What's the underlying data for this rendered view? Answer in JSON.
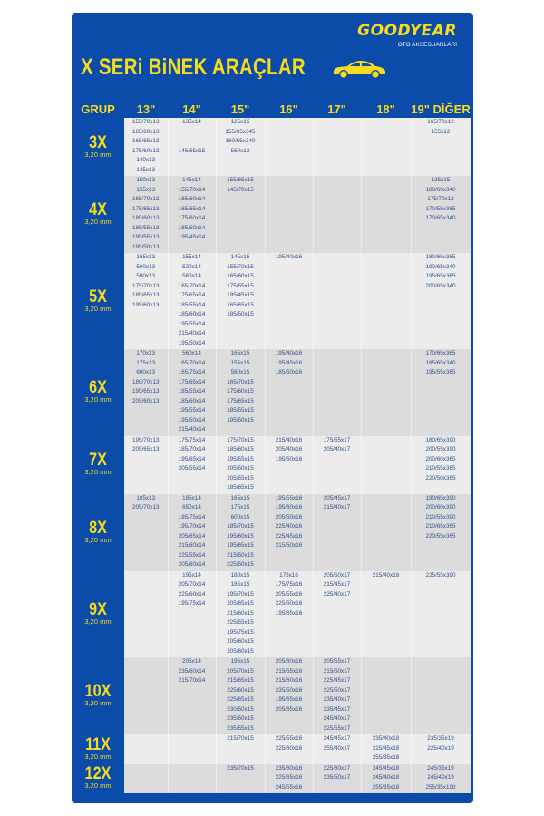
{
  "brand": {
    "logo": "GOODYEAR",
    "subtitle": "OTO AKSESUARLARI"
  },
  "title": "X SERi BiNEK ARAÇLAR",
  "colors": {
    "panel": "#0b4ba9",
    "accent": "#f7dc1b",
    "text": "#2c4f8c"
  },
  "headers": [
    "GRUP",
    "13\"",
    "14\"",
    "15\"",
    "16\"",
    "17\"",
    "18\"",
    "19\" DİĞER"
  ],
  "groups": [
    {
      "name": "3X",
      "thickness": "3,20 mm",
      "cells": [
        [
          "155/70x13",
          "165/60x13",
          "165/65x13",
          "175/60x13",
          "140x13",
          "145x13"
        ],
        [
          "135x14",
          "",
          "",
          "145/65x15"
        ],
        [
          "125x15",
          "155/65x345",
          "160/65x340",
          "560x12"
        ],
        [],
        [],
        [],
        [
          "165/70x12",
          "155x12"
        ]
      ]
    },
    {
      "name": "4X",
      "thickness": "3,20 mm",
      "cells": [
        [
          "150x13",
          "155x13",
          "165/70x13",
          "175/65x13",
          "185/60x13",
          "185/55x13",
          "195/55x13",
          "195/50x13"
        ],
        [
          "145x14",
          "155/70x14",
          "165/60x14",
          "165/65x14",
          "175/60x14",
          "185/50x14",
          "195/45x14"
        ],
        [
          "155/65x15",
          "145/70x15"
        ],
        [],
        [],
        [],
        [
          "135x15",
          "180/60x340",
          "175/70x12",
          "170/55x365",
          "170/65x340"
        ]
      ]
    },
    {
      "name": "5X",
      "thickness": "3,20 mm",
      "cells": [
        [
          "165x13",
          "560x13",
          "590x13",
          "175/70x13",
          "185/65x13",
          "195/60x13"
        ],
        [
          "155x14",
          "520x14",
          "560x14",
          "165/70x14",
          "175/65x14",
          "185/55x14",
          "185/60x14",
          "195/55x14",
          "215/40x14",
          "195/50x14"
        ],
        [
          "145x15",
          "155/70x15",
          "165/60x15",
          "175/55x15",
          "195/45x15",
          "165/65x15",
          "185/50x15"
        ],
        [
          "195/40x16"
        ],
        [],
        [],
        [
          "180/65x365",
          "190/65x340",
          "195/65x365",
          "200/65x340"
        ]
      ]
    },
    {
      "name": "6X",
      "thickness": "3,20 mm",
      "cells": [
        [
          "170x13",
          "175x13",
          "600x13",
          "185/70x13",
          "195/65x13",
          "205/60x13"
        ],
        [
          "560x14",
          "165/70x14",
          "165/75x14",
          "175/65x14",
          "185/55x14",
          "185/60x14",
          "195/55x14",
          "195/50x14",
          "215/40x14"
        ],
        [
          "165x15",
          "155x15",
          "560x15",
          "165/70x15",
          "175/60x15",
          "175/65x15",
          "185/55x15",
          "195/50x15"
        ],
        [
          "195/40x16",
          "195/45x16",
          "185/50x16"
        ],
        [],
        [],
        [
          "170/65x365",
          "185/65x340",
          "195/55x365"
        ]
      ]
    },
    {
      "name": "7X",
      "thickness": "3,20 mm",
      "cells": [
        [
          "195/70x13",
          "205/65x13"
        ],
        [
          "175/75x14",
          "185/70x14",
          "195/65x14",
          "205/55x14"
        ],
        [
          "175/70x15",
          "185/60x15",
          "195/55x15",
          "205/50x15",
          "205/55x15",
          "185/65x15"
        ],
        [
          "215/40x16",
          "205/40x16",
          "195/50x16"
        ],
        [
          "175/55x17",
          "205/40x17"
        ],
        [],
        [
          "180/65x390",
          "200/55x390",
          "200/60x365",
          "210/55x365",
          "220/50x365"
        ]
      ]
    },
    {
      "name": "8X",
      "thickness": "3,20 mm",
      "cells": [
        [
          "185x13",
          "205/70x13"
        ],
        [
          "185x14",
          "650x14",
          "185/75x14",
          "195/70x14",
          "205/65x14",
          "215/60x14",
          "225/55x14",
          "205/60x14"
        ],
        [
          "165x15",
          "175x15",
          "600x15",
          "185/70x15",
          "195/60x15",
          "195/65x15",
          "215/50x15",
          "225/50x15"
        ],
        [
          "195/55x16",
          "195/60x16",
          "205/50x16",
          "225/40x16",
          "225/45x16",
          "215/50x16"
        ],
        [
          "205/45x17",
          "215/40x17"
        ],
        [],
        [
          "190/65x390",
          "200/60x390",
          "210/55x390",
          "210/65x365",
          "220/55x365"
        ]
      ]
    },
    {
      "name": "9X",
      "thickness": "3,20 mm",
      "cells": [
        [],
        [
          "195x14",
          "205/70x14",
          "225/60x14",
          "195/75x14"
        ],
        [
          "180x15",
          "185x15",
          "195/70x15",
          "205/65x15",
          "215/60x15",
          "225/55x15",
          "195/75x15",
          "205/60x15",
          "205/60x15"
        ],
        [
          "175x16",
          "175/75x16",
          "205/55x16",
          "225/50x16",
          "195/65x16"
        ],
        [
          "205/50x17",
          "215/45x17",
          "225/40x17"
        ],
        [
          "215/40x18"
        ],
        [
          "225/55x390"
        ]
      ]
    },
    {
      "name": "10X",
      "thickness": "3,20 mm",
      "cells": [
        [],
        [
          "205x14",
          "235/60x14",
          "215/70x14"
        ],
        [
          "195x15",
          "205/70x15",
          "215/65x15",
          "225/60x15",
          "225/65x15",
          "230/50x15",
          "235/50x15",
          "235/55x15"
        ],
        [
          "205/60x16",
          "215/55x16",
          "215/60x16",
          "235/50x16",
          "195/65x16",
          "205/65x16"
        ],
        [
          "205/55x17",
          "215/50x17",
          "225/45x17",
          "225/50x17",
          "235/40x17",
          "235/45x17",
          "245/40x17",
          "225/55x17"
        ],
        [],
        []
      ]
    },
    {
      "name": "11X",
      "thickness": "3,20 mm",
      "cells": [
        [],
        [],
        [
          "215/70x15"
        ],
        [
          "225/55x16",
          "225/60x16"
        ],
        [
          "245/45x17",
          "255/40x17"
        ],
        [
          "235/40x18",
          "225/45x18",
          "255/35x18"
        ],
        [
          "235/35x19",
          "225/40x19"
        ]
      ]
    },
    {
      "name": "12X",
      "thickness": "3,20 mm",
      "cells": [
        [],
        [],
        [
          "235/70x15"
        ],
        [
          "235/60x16",
          "225/65x16",
          "245/55x16"
        ],
        [
          "225/60x17",
          "235/50x17"
        ],
        [
          "245/45x18",
          "245/40x18",
          "255/35x18"
        ],
        [
          "245/35x19",
          "245/40x19",
          "255/35x19tt"
        ]
      ]
    }
  ]
}
